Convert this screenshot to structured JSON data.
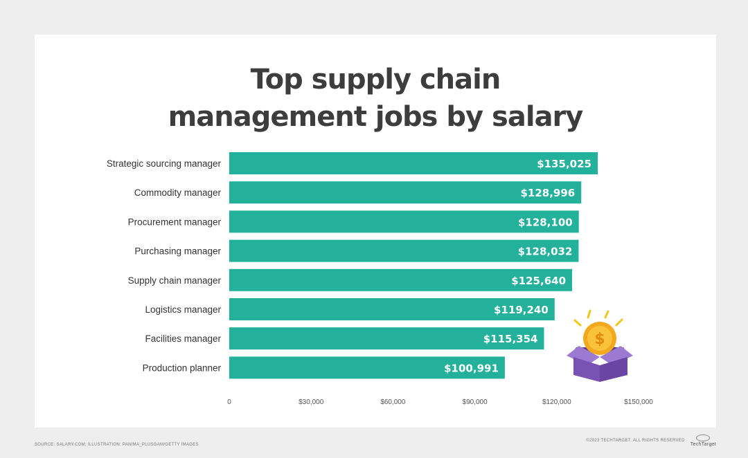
{
  "title_lines": [
    "Top supply chain",
    "management jobs by salary"
  ],
  "colors": {
    "bar": "#23b19c",
    "background": "#eeeeee",
    "card": "#ffffff",
    "title": "#3d3d3d"
  },
  "footer": {
    "source": "SOURCE: SALARY.COM; ILLUSTRATION: PANIMA_PLUSGAM/GETTY IMAGES",
    "copyright": "©2023 TECHTARGET. ALL RIGHTS RESERVED",
    "brand": "TechTarget"
  },
  "illustration": {
    "icon": "coin-box-icon",
    "coin_symbol": "$"
  },
  "chart_data": {
    "type": "bar",
    "orientation": "horizontal",
    "title": "Top supply chain management jobs by salary",
    "categories": [
      "Strategic sourcing manager",
      "Commodity manager",
      "Procurement manager",
      "Purchasing manager",
      "Supply chain manager",
      "Logistics manager",
      "Facilities manager",
      "Production planner"
    ],
    "values": [
      135025,
      128996,
      128100,
      128032,
      125640,
      119240,
      115354,
      100991
    ],
    "value_labels": [
      "$135,025",
      "$128,996",
      "$128,100",
      "$128,032",
      "$125,640",
      "$119,240",
      "$115,354",
      "$100,991"
    ],
    "xlim": [
      0,
      150000
    ],
    "ticks": [
      0,
      30000,
      60000,
      90000,
      120000,
      150000
    ],
    "tick_labels": [
      "0",
      "$30,000",
      "$60,000",
      "$90,000",
      "$120,000",
      "$150,000"
    ],
    "xlabel": "",
    "ylabel": "",
    "grid": false,
    "legend": "none"
  }
}
